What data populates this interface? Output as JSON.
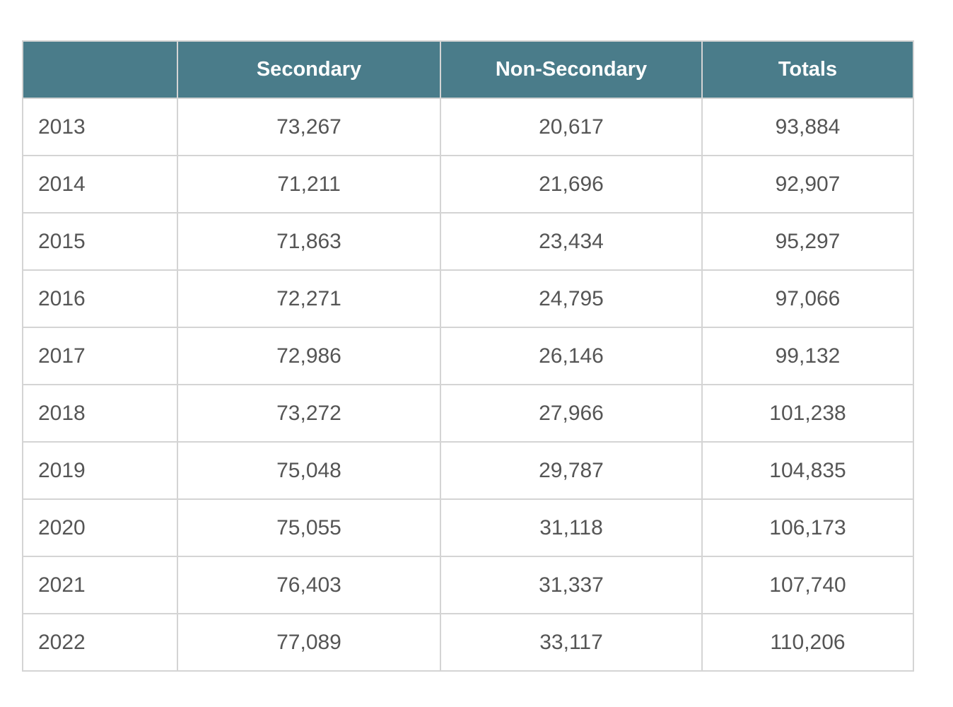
{
  "table": {
    "columns": [
      "",
      "Secondary",
      "Non-Secondary",
      "Totals"
    ],
    "rows": [
      [
        "2013",
        "73,267",
        "20,617",
        "93,884"
      ],
      [
        "2014",
        "71,211",
        "21,696",
        "92,907"
      ],
      [
        "2015",
        "71,863",
        "23,434",
        "95,297"
      ],
      [
        "2016",
        "72,271",
        "24,795",
        "97,066"
      ],
      [
        "2017",
        "72,986",
        "26,146",
        "99,132"
      ],
      [
        "2018",
        "73,272",
        "27,966",
        "101,238"
      ],
      [
        "2019",
        "75,048",
        "29,787",
        "104,835"
      ],
      [
        "2020",
        "75,055",
        "31,118",
        "106,173"
      ],
      [
        "2021",
        "76,403",
        "31,337",
        "107,740"
      ],
      [
        "2022",
        "77,089",
        "33,117",
        "110,206"
      ]
    ]
  },
  "colors": {
    "header_bg": "#4a7c8a",
    "header_text": "#ffffff",
    "cell_text": "#555555",
    "border": "#d4d4d4"
  }
}
